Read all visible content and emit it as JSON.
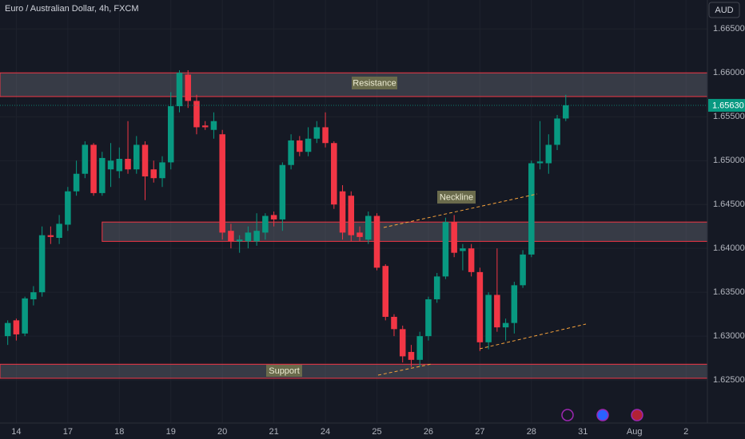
{
  "header": {
    "title": "Euro / Australian Dollar, 4h, FXCM",
    "currency": "AUD"
  },
  "chart_data": {
    "type": "candlestick",
    "x": [
      0,
      1,
      2,
      3,
      4,
      5,
      6,
      7,
      8,
      9,
      10,
      11,
      12,
      13,
      14,
      15,
      16,
      17,
      18,
      19,
      20,
      21,
      22,
      23,
      24,
      25,
      26,
      27,
      28,
      29,
      30,
      31,
      32,
      33,
      34,
      35,
      36,
      37,
      38,
      39,
      40,
      41,
      42,
      43,
      44,
      45,
      46,
      47,
      48,
      49,
      50,
      51,
      52,
      53,
      54,
      55,
      56,
      57,
      58,
      59,
      60,
      61,
      62,
      63,
      64,
      65
    ],
    "open": [
      1.63,
      1.6318,
      1.6303,
      1.6342,
      1.635,
      1.6415,
      1.6412,
      1.6427,
      1.6465,
      1.6485,
      1.6518,
      1.6463,
      1.649,
      1.6488,
      1.6502,
      1.649,
      1.6518,
      1.649,
      1.648,
      1.6498,
      1.6562,
      1.6598,
      1.6568,
      1.654,
      1.6535,
      1.653,
      1.642,
      1.6408,
      1.6408,
      1.6408,
      1.6418,
      1.6438,
      1.6433,
      1.6495,
      1.6523,
      1.651,
      1.6525,
      1.6538,
      1.652,
      1.6465,
      1.646,
      1.6418,
      1.641,
      1.6437,
      1.638,
      1.6322,
      1.6308,
      1.6282,
      1.6273,
      1.63,
      1.6342,
      1.6368,
      1.643,
      1.6397,
      1.64,
      1.6373,
      1.6293,
      1.6347,
      1.631,
      1.6315,
      1.6358,
      1.6393,
      1.6497,
      1.6497,
      1.6518,
      1.6548
    ],
    "high": [
      1.6318,
      1.632,
      1.6345,
      1.6357,
      1.6425,
      1.6425,
      1.6438,
      1.647,
      1.65,
      1.6522,
      1.652,
      1.651,
      1.652,
      1.6515,
      1.6545,
      1.6528,
      1.6522,
      1.65,
      1.6505,
      1.6578,
      1.6603,
      1.6603,
      1.6575,
      1.6545,
      1.6555,
      1.6535,
      1.6428,
      1.6415,
      1.6425,
      1.644,
      1.644,
      1.6442,
      1.6498,
      1.653,
      1.6528,
      1.6538,
      1.6545,
      1.6555,
      1.6522,
      1.6472,
      1.6465,
      1.6425,
      1.6442,
      1.644,
      1.6382,
      1.6325,
      1.6312,
      1.629,
      1.6305,
      1.6345,
      1.6372,
      1.6435,
      1.6438,
      1.6405,
      1.6405,
      1.6378,
      1.635,
      1.64,
      1.632,
      1.6362,
      1.6398,
      1.65,
      1.6545,
      1.653,
      1.6552,
      1.6575
    ],
    "low": [
      1.629,
      1.6295,
      1.63,
      1.6335,
      1.6345,
      1.6405,
      1.6405,
      1.642,
      1.646,
      1.648,
      1.646,
      1.646,
      1.647,
      1.648,
      1.6485,
      1.6485,
      1.6455,
      1.6475,
      1.647,
      1.649,
      1.6555,
      1.656,
      1.653,
      1.6535,
      1.6525,
      1.641,
      1.64,
      1.6395,
      1.64,
      1.6403,
      1.641,
      1.6425,
      1.642,
      1.649,
      1.6505,
      1.6505,
      1.652,
      1.6515,
      1.6445,
      1.641,
      1.6408,
      1.6408,
      1.6405,
      1.6375,
      1.6318,
      1.63,
      1.627,
      1.6265,
      1.6265,
      1.6295,
      1.6338,
      1.6365,
      1.639,
      1.6375,
      1.6368,
      1.6283,
      1.6285,
      1.6305,
      1.6295,
      1.6303,
      1.6355,
      1.639,
      1.649,
      1.6485,
      1.6512,
      1.6545
    ],
    "close": [
      1.6315,
      1.6302,
      1.6343,
      1.635,
      1.6415,
      1.6413,
      1.6428,
      1.6465,
      1.6485,
      1.6518,
      1.6463,
      1.6503,
      1.65,
      1.6502,
      1.649,
      1.6518,
      1.6482,
      1.648,
      1.6498,
      1.6562,
      1.66,
      1.6568,
      1.6538,
      1.6538,
      1.6545,
      1.6418,
      1.6408,
      1.641,
      1.6418,
      1.642,
      1.6437,
      1.6433,
      1.6495,
      1.6523,
      1.651,
      1.6525,
      1.6538,
      1.652,
      1.645,
      1.6418,
      1.6415,
      1.6413,
      1.6437,
      1.6378,
      1.6322,
      1.6308,
      1.6277,
      1.6273,
      1.63,
      1.6342,
      1.6368,
      1.643,
      1.6395,
      1.64,
      1.6373,
      1.6293,
      1.6347,
      1.631,
      1.6315,
      1.6358,
      1.6393,
      1.6497,
      1.6499,
      1.6518,
      1.6548,
      1.6563
    ],
    "up_color": "#089981",
    "down_color": "#f23645",
    "xlim": [
      -0.9,
      81.5
    ],
    "xticks": [
      {
        "value": 1,
        "label": "14"
      },
      {
        "value": 7,
        "label": "17"
      },
      {
        "value": 13,
        "label": "18"
      },
      {
        "value": 19,
        "label": "19"
      },
      {
        "value": 25,
        "label": "20"
      },
      {
        "value": 31,
        "label": "21"
      },
      {
        "value": 37,
        "label": "24"
      },
      {
        "value": 43,
        "label": "25"
      },
      {
        "value": 49,
        "label": "26"
      },
      {
        "value": 55,
        "label": "27"
      },
      {
        "value": 61,
        "label": "28"
      },
      {
        "value": 67,
        "label": "31"
      },
      {
        "value": 73,
        "label": "Aug"
      },
      {
        "value": 79,
        "label": "2"
      }
    ],
    "ylim": [
      1.6201,
      1.6683
    ],
    "yticks": [
      {
        "value": 1.625,
        "label": "1.62500"
      },
      {
        "value": 1.63,
        "label": "1.63000"
      },
      {
        "value": 1.635,
        "label": "1.63500"
      },
      {
        "value": 1.64,
        "label": "1.64000"
      },
      {
        "value": 1.645,
        "label": "1.64500"
      },
      {
        "value": 1.65,
        "label": "1.65000"
      },
      {
        "value": 1.655,
        "label": "1.65500"
      },
      {
        "value": 1.66,
        "label": "1.66000"
      },
      {
        "value": 1.665,
        "label": "1.66500"
      }
    ],
    "grid": true,
    "last_price": {
      "value": 1.6563,
      "label": "1.65630"
    },
    "zones": [
      {
        "label": "Resistance",
        "low": 1.6573,
        "high": 1.66,
        "x_start": -0.9
      },
      {
        "low": 1.6408,
        "high": 1.643,
        "x_start": 11
      },
      {
        "label": "Support",
        "low": 1.6252,
        "high": 1.6268,
        "x_start": -0.9
      }
    ],
    "annotation": "Neckline"
  }
}
